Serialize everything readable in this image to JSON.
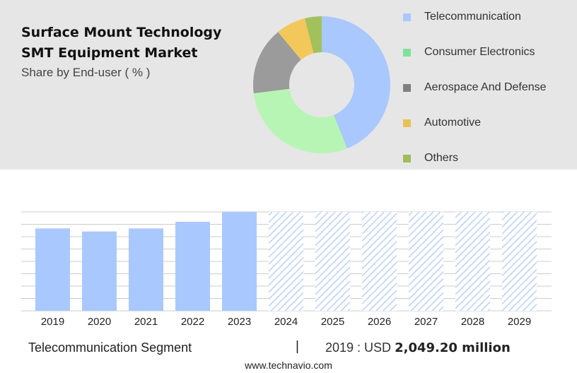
{
  "header": {
    "title": "Surface Mount Technology SMT Equipment Market",
    "subtitle": "Share by End-user ( % )"
  },
  "colors": {
    "forecast_hatch": "#a9c8f7",
    "bar_fill": "#a9c8fe",
    "grid": "#cccccc",
    "panel_background": "#e6e6e6"
  },
  "chart_data": [
    {
      "type": "pie",
      "variant": "donut",
      "legend_position": "right",
      "slices": [
        {
          "label": "Telecommunication",
          "value": 44,
          "color": "#a9c8fe"
        },
        {
          "label": "Consumer Electronics",
          "value": 29,
          "color": "#b7f5b5"
        },
        {
          "label": "Aerospace And Defense",
          "value": 16,
          "color": "#9b9b9b"
        },
        {
          "label": "Automotive",
          "value": 7,
          "color": "#f2c85b"
        },
        {
          "label": "Others",
          "value": 4,
          "color": "#a3c15a"
        }
      ],
      "legend_colors": [
        "#a9c8fe",
        "#7de39a",
        "#808080",
        "#e6c252",
        "#9fbd58"
      ]
    },
    {
      "type": "bar",
      "categories": [
        "2019",
        "2020",
        "2021",
        "2022",
        "2023",
        "2024",
        "2025",
        "2026",
        "2027",
        "2028",
        "2029"
      ],
      "values": [
        2049.2,
        1974,
        2049,
        2215,
        2460,
        null,
        null,
        null,
        null,
        null,
        null
      ],
      "forecast_categories": [
        "2024",
        "2025",
        "2026",
        "2027",
        "2028",
        "2029"
      ],
      "ylim": [
        0,
        2460
      ],
      "grid": true,
      "yaxis_labels_visible": false
    }
  ],
  "footer": {
    "segment": "Telecommunication Segment",
    "separator": "|",
    "year_label": "2019 : USD",
    "value": "2,049.20 million",
    "website": "www.technavio.com"
  }
}
